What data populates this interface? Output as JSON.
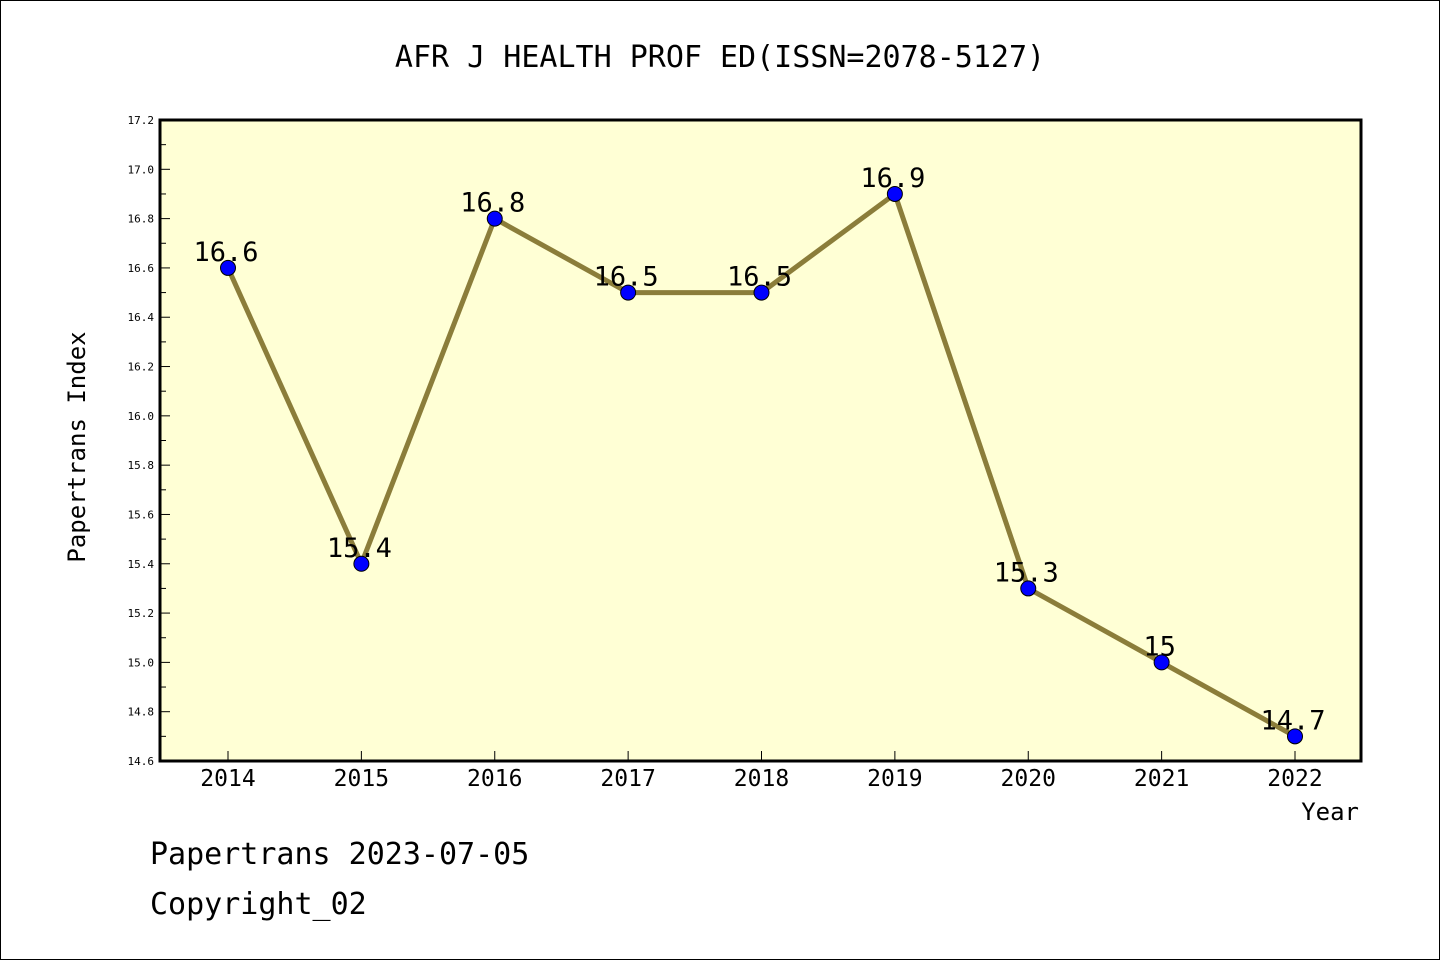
{
  "chart_data": {
    "type": "line",
    "title": "AFR J HEALTH PROF ED(ISSN=2078-5127)",
    "xlabel": "Year",
    "ylabel": "Papertrans Index",
    "categories": [
      "2014",
      "2015",
      "2016",
      "2017",
      "2018",
      "2019",
      "2020",
      "2021",
      "2022"
    ],
    "values": [
      16.6,
      15.4,
      16.8,
      16.5,
      16.5,
      16.9,
      15.3,
      15,
      14.7
    ],
    "data_labels": [
      "16.6",
      "15.4",
      "16.8",
      "16.5",
      "16.5",
      "16.9",
      "15.3",
      "15",
      "14.7"
    ],
    "ylim": [
      14.6,
      17.2
    ],
    "yticks": [
      "14.6",
      "14.8",
      "15.0",
      "15.2",
      "15.4",
      "15.6",
      "15.8",
      "16.0",
      "16.2",
      "16.4",
      "16.6",
      "16.8",
      "17.0",
      "17.2"
    ],
    "grid": false,
    "colors": {
      "plot_background": "#ffffd5",
      "line": "#8b7d3a",
      "marker": "#0000ff"
    }
  },
  "footer": {
    "line1": "Papertrans 2023-07-05",
    "line2": "Copyright_02"
  }
}
